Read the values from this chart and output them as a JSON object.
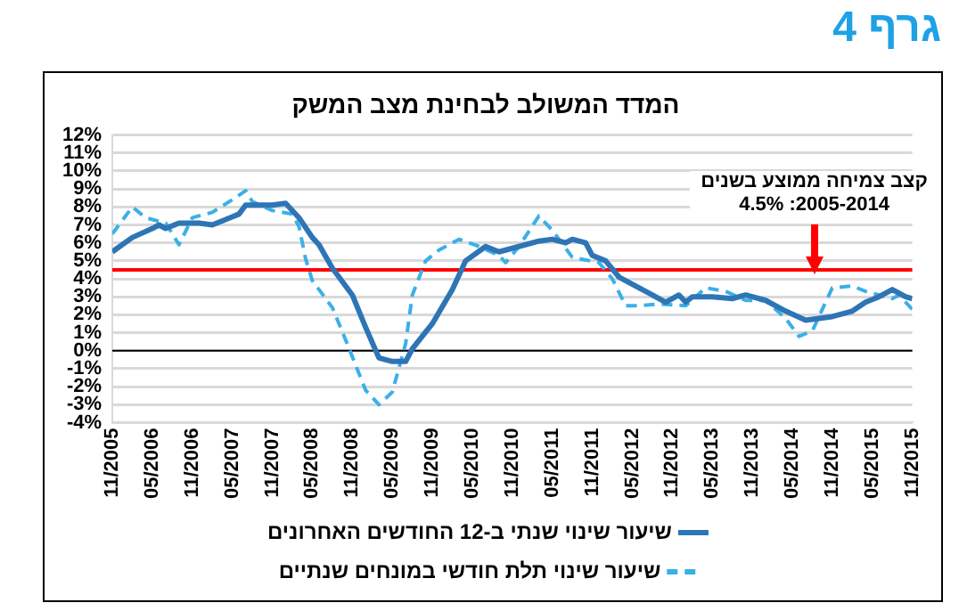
{
  "chart_data": {
    "type": "line",
    "title": "המדד המשולב לבחינת מצב המשק",
    "annotations": [
      "גרף 4",
      "קצב צמיחה ממוצע בשנים 2005-2014: 4.5%"
    ],
    "xlim": [
      "2005-11",
      "2015-11"
    ],
    "xticks": [
      {
        "value": "2005-11",
        "label": "11/2005"
      },
      {
        "value": "2006-05",
        "label": "05/2006"
      },
      {
        "value": "2006-11",
        "label": "11/2006"
      },
      {
        "value": "2007-05",
        "label": "05/2007"
      },
      {
        "value": "2007-11",
        "label": "11/2007"
      },
      {
        "value": "2008-05",
        "label": "05/2008"
      },
      {
        "value": "2008-11",
        "label": "11/2008"
      },
      {
        "value": "2009-05",
        "label": "05/2009"
      },
      {
        "value": "2009-11",
        "label": "11/2009"
      },
      {
        "value": "2010-05",
        "label": "05/2010"
      },
      {
        "value": "2010-11",
        "label": "11/2010"
      },
      {
        "value": "2011-05",
        "label": "05/2011"
      },
      {
        "value": "2011-11",
        "label": "11/2011"
      },
      {
        "value": "2012-05",
        "label": "05/2012"
      },
      {
        "value": "2012-11",
        "label": "11/2012"
      },
      {
        "value": "2013-05",
        "label": "05/2013"
      },
      {
        "value": "2013-11",
        "label": "11/2013"
      },
      {
        "value": "2014-05",
        "label": "05/2014"
      },
      {
        "value": "2014-11",
        "label": "11/2014"
      },
      {
        "value": "2015-05",
        "label": "05/2015"
      },
      {
        "value": "2015-11",
        "label": "11/2015"
      }
    ],
    "ylim": [
      -4,
      12
    ],
    "yticks": [
      {
        "value": -4,
        "label": "-4%"
      },
      {
        "value": -3,
        "label": "-3%"
      },
      {
        "value": -2,
        "label": "-2%"
      },
      {
        "value": -1,
        "label": "-1%"
      },
      {
        "value": 0,
        "label": "0%"
      },
      {
        "value": 1,
        "label": "1%"
      },
      {
        "value": 2,
        "label": "2%"
      },
      {
        "value": 3,
        "label": "3%"
      },
      {
        "value": 4,
        "label": "4%"
      },
      {
        "value": 5,
        "label": "5%"
      },
      {
        "value": 6,
        "label": "6%"
      },
      {
        "value": 7,
        "label": "7%"
      },
      {
        "value": 8,
        "label": "8%"
      },
      {
        "value": 9,
        "label": "9%"
      },
      {
        "value": 10,
        "label": "10%"
      },
      {
        "value": 11,
        "label": "11%"
      },
      {
        "value": 12,
        "label": "12%"
      }
    ],
    "grid": "y",
    "legend": "bottom",
    "marker": "none",
    "ref_lines": [
      {
        "axis": "y",
        "value": 0,
        "color": "#000000"
      },
      {
        "axis": "y",
        "value": 4.5,
        "color": "#ff0000"
      }
    ],
    "series": [
      {
        "name": "שיעור שינוי שנתי ב-12 החודשים האחרונים",
        "color": "#2e75b6",
        "line_style": "solid",
        "x": [
          "2005-11",
          "2006-02",
          "2006-05",
          "2006-06",
          "2006-07",
          "2006-09",
          "2006-12",
          "2007-02",
          "2007-04",
          "2007-06",
          "2007-07",
          "2007-11",
          "2008-01",
          "2008-03",
          "2008-05",
          "2008-06",
          "2008-08",
          "2008-11",
          "2009-01",
          "2009-03",
          "2009-05",
          "2009-07",
          "2009-08",
          "2009-11",
          "2010-02",
          "2010-04",
          "2010-07",
          "2010-09",
          "2010-11",
          "2011-03",
          "2011-05",
          "2011-07",
          "2011-08",
          "2011-10",
          "2011-11",
          "2012-01",
          "2012-03",
          "2012-06",
          "2012-08",
          "2012-10",
          "2012-12",
          "2013-01",
          "2013-02",
          "2013-05",
          "2013-08",
          "2013-10",
          "2014-01",
          "2014-04",
          "2014-07",
          "2014-09",
          "2014-11",
          "2015-02",
          "2015-04",
          "2015-06",
          "2015-08",
          "2015-10",
          "2015-11"
        ],
        "values": [
          5.5,
          6.3,
          6.8,
          7.0,
          6.8,
          7.1,
          7.1,
          7.0,
          7.3,
          7.6,
          8.1,
          8.1,
          8.2,
          7.4,
          6.3,
          5.9,
          4.6,
          3.1,
          1.3,
          -0.4,
          -0.6,
          -0.6,
          0.1,
          1.5,
          3.4,
          5.0,
          5.8,
          5.5,
          5.7,
          6.1,
          6.2,
          6.0,
          6.2,
          6.0,
          5.3,
          5.0,
          4.1,
          3.5,
          3.1,
          2.7,
          3.1,
          2.7,
          3.0,
          3.0,
          2.9,
          3.1,
          2.8,
          2.2,
          1.7,
          1.8,
          1.9,
          2.2,
          2.7,
          3.0,
          3.4,
          3.0,
          2.9
        ]
      },
      {
        "name": "שיעור שינוי תלת חודשי במונחים שנתיים",
        "color": "#3bb0e8",
        "line_style": "dashed",
        "x": [
          "2005-11",
          "2006-02",
          "2006-04",
          "2006-07",
          "2006-09",
          "2006-11",
          "2007-02",
          "2007-05",
          "2007-07",
          "2007-08",
          "2007-11",
          "2008-02",
          "2008-03",
          "2008-04",
          "2008-05",
          "2008-08",
          "2008-10",
          "2009-01",
          "2009-03",
          "2009-05",
          "2009-07",
          "2009-08",
          "2009-10",
          "2009-12",
          "2010-03",
          "2010-06",
          "2010-09",
          "2010-10",
          "2010-12",
          "2011-03",
          "2011-05",
          "2011-08",
          "2011-12",
          "2012-02",
          "2012-04",
          "2012-06",
          "2012-09",
          "2013-01",
          "2013-04",
          "2013-07",
          "2013-10",
          "2014-01",
          "2014-04",
          "2014-06",
          "2014-08",
          "2014-11",
          "2015-02",
          "2015-04",
          "2015-08",
          "2015-09",
          "2015-11"
        ],
        "values": [
          6.5,
          8.0,
          7.4,
          7.1,
          5.9,
          7.4,
          7.7,
          8.4,
          8.9,
          8.3,
          7.8,
          7.6,
          6.9,
          5.1,
          3.9,
          2.4,
          0.6,
          -2.2,
          -3.0,
          -2.3,
          0.4,
          3.1,
          5.0,
          5.6,
          6.2,
          5.8,
          5.3,
          4.9,
          5.8,
          7.5,
          6.7,
          5.2,
          4.9,
          4.0,
          2.5,
          2.5,
          2.6,
          2.5,
          3.5,
          3.3,
          2.8,
          2.8,
          1.8,
          0.8,
          1.1,
          3.5,
          3.6,
          3.3,
          2.9,
          3.1,
          2.3
        ]
      }
    ]
  }
}
